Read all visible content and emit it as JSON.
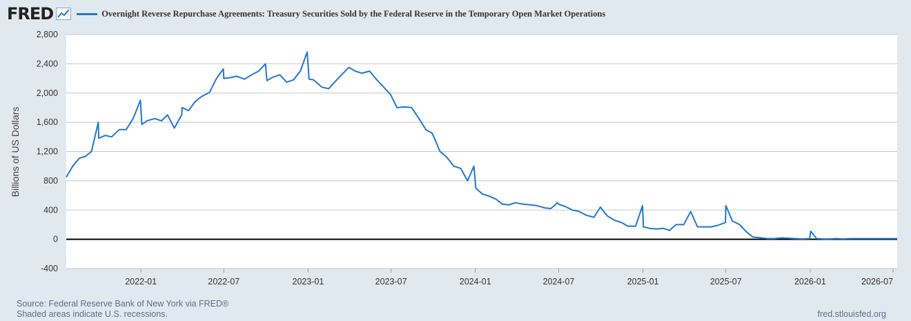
{
  "header": {
    "logo": "FRED",
    "title": "Overnight Reverse Repurchase Agreements: Treasury Securities Sold by the Federal Reserve in the Temporary Open Market Operations"
  },
  "footer": {
    "source": "Source: Federal Reserve Bank of New York via FRED®",
    "note": "Shaded areas indicate U.S. recessions.",
    "url": "fred.stlouisfed.org"
  },
  "colors": {
    "line": "#1f77d4",
    "background": "#e1e9f0",
    "plot": "#ffffff",
    "grid": "#c8c8c8",
    "zero": "#000000"
  },
  "chart_data": {
    "type": "line",
    "title": "Overnight Reverse Repurchase Agreements: Treasury Securities Sold by the Federal Reserve in the Temporary Open Market Operations",
    "ylabel": "Billions of US Dollars",
    "xlabel": "",
    "ylim": [
      -400,
      2800
    ],
    "xlim": [
      "2021-07-22",
      "2026-07-10"
    ],
    "yticks": [
      "-400",
      "0",
      "400",
      "800",
      "1,200",
      "1,600",
      "2,000",
      "2,400",
      "2,800"
    ],
    "ytick_values": [
      -400,
      0,
      400,
      800,
      1200,
      1600,
      2000,
      2400,
      2800
    ],
    "xticks": [
      "2022-01",
      "2022-07",
      "2023-01",
      "2023-07",
      "2024-01",
      "2024-07",
      "2025-01",
      "2025-07",
      "2026-01",
      "2026-07"
    ],
    "xtick_dates": [
      "2022-01-01",
      "2022-07-01",
      "2023-01-01",
      "2023-07-01",
      "2024-01-01",
      "2024-07-01",
      "2025-01-01",
      "2025-07-01",
      "2026-01-01",
      "2026-07-01"
    ],
    "grid": true,
    "series": [
      {
        "color": "#1f77d4",
        "x": [
          "2021-07-22",
          "2021-08-05",
          "2021-08-20",
          "2021-09-01",
          "2021-09-15",
          "2021-09-30",
          "2021-10-01",
          "2021-10-15",
          "2021-10-29",
          "2021-11-15",
          "2021-11-30",
          "2021-12-15",
          "2021-12-31",
          "2022-01-03",
          "2022-01-14",
          "2022-01-31",
          "2022-02-15",
          "2022-02-28",
          "2022-03-15",
          "2022-03-31",
          "2022-04-01",
          "2022-04-15",
          "2022-04-29",
          "2022-05-13",
          "2022-05-31",
          "2022-06-15",
          "2022-06-30",
          "2022-07-01",
          "2022-07-15",
          "2022-07-29",
          "2022-08-15",
          "2022-08-31",
          "2022-09-15",
          "2022-09-30",
          "2022-10-03",
          "2022-10-14",
          "2022-10-31",
          "2022-11-15",
          "2022-11-30",
          "2022-12-15",
          "2022-12-30",
          "2023-01-03",
          "2023-01-13",
          "2023-01-31",
          "2023-02-15",
          "2023-02-28",
          "2023-03-15",
          "2023-03-31",
          "2023-04-14",
          "2023-04-28",
          "2023-05-15",
          "2023-05-31",
          "2023-06-15",
          "2023-06-30",
          "2023-07-14",
          "2023-07-31",
          "2023-08-15",
          "2023-08-31",
          "2023-09-15",
          "2023-09-29",
          "2023-10-16",
          "2023-10-31",
          "2023-11-15",
          "2023-11-30",
          "2023-12-15",
          "2023-12-29",
          "2024-01-02",
          "2024-01-16",
          "2024-01-31",
          "2024-02-15",
          "2024-02-29",
          "2024-03-15",
          "2024-03-28",
          "2024-04-15",
          "2024-04-30",
          "2024-05-15",
          "2024-05-31",
          "2024-06-14",
          "2024-06-28",
          "2024-07-01",
          "2024-07-15",
          "2024-07-31",
          "2024-08-15",
          "2024-08-30",
          "2024-09-16",
          "2024-09-30",
          "2024-10-15",
          "2024-10-31",
          "2024-11-15",
          "2024-11-29",
          "2024-12-16",
          "2024-12-31",
          "2025-01-02",
          "2025-01-15",
          "2025-01-31",
          "2025-02-14",
          "2025-02-28",
          "2025-03-14",
          "2025-03-31",
          "2025-04-15",
          "2025-04-30",
          "2025-05-15",
          "2025-05-30",
          "2025-06-13",
          "2025-06-30",
          "2025-07-01",
          "2025-07-15",
          "2025-07-31",
          "2025-08-15",
          "2025-08-29",
          "2025-09-15",
          "2025-09-30",
          "2025-10-15",
          "2025-10-31",
          "2025-11-14",
          "2025-11-28",
          "2025-12-15",
          "2025-12-31",
          "2026-01-02",
          "2026-01-15",
          "2026-01-30",
          "2026-02-13",
          "2026-02-27",
          "2026-03-13",
          "2026-03-31",
          "2026-04-15",
          "2026-04-30",
          "2026-05-15",
          "2026-05-29",
          "2026-06-15",
          "2026-06-30",
          "2026-07-10"
        ],
        "y": [
          850,
          1000,
          1110,
          1130,
          1200,
          1600,
          1380,
          1420,
          1400,
          1500,
          1500,
          1650,
          1900,
          1570,
          1620,
          1650,
          1620,
          1700,
          1520,
          1700,
          1800,
          1760,
          1880,
          1950,
          2010,
          2200,
          2330,
          2200,
          2210,
          2230,
          2190,
          2250,
          2300,
          2400,
          2170,
          2210,
          2250,
          2150,
          2180,
          2300,
          2560,
          2190,
          2180,
          2080,
          2060,
          2150,
          2250,
          2350,
          2300,
          2270,
          2300,
          2180,
          2080,
          1980,
          1800,
          1810,
          1800,
          1650,
          1500,
          1450,
          1200,
          1120,
          1000,
          970,
          800,
          1000,
          700,
          620,
          590,
          550,
          480,
          470,
          500,
          480,
          470,
          460,
          430,
          420,
          500,
          480,
          450,
          400,
          380,
          330,
          300,
          440,
          320,
          260,
          230,
          180,
          180,
          460,
          170,
          150,
          140,
          150,
          120,
          200,
          200,
          380,
          170,
          170,
          170,
          190,
          230,
          460,
          250,
          200,
          100,
          30,
          20,
          10,
          10,
          20,
          15,
          10,
          5,
          10,
          110,
          10,
          5,
          5,
          10,
          5,
          10,
          10,
          10,
          10,
          10,
          10,
          10,
          10
        ]
      }
    ]
  }
}
